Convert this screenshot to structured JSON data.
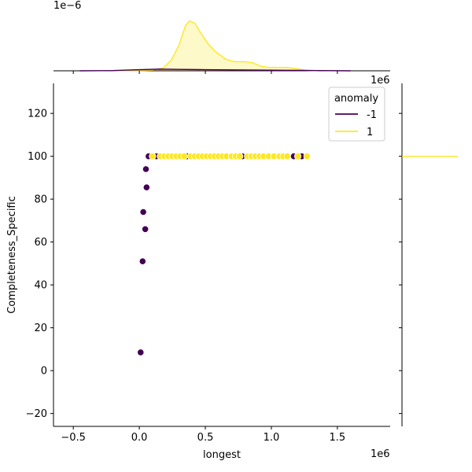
{
  "chart_data": {
    "type": "scatter",
    "subtype": "jointplot",
    "xlabel": "longest",
    "ylabel": "Completeness_Specific",
    "x_offset_label": "1e6",
    "top_marginal_offset_label": "1e−6",
    "right_marginal_offset_label": "1e6",
    "xlim": [
      -0.65,
      1.9
    ],
    "ylim": [
      -26,
      134
    ],
    "x_ticks": [
      -0.5,
      0.0,
      0.5,
      1.0,
      1.5
    ],
    "x_tick_labels": [
      "−0.5",
      "0.0",
      "0.5",
      "1.0",
      "1.5"
    ],
    "y_ticks": [
      -20,
      0,
      20,
      40,
      60,
      80,
      100,
      120
    ],
    "y_tick_labels": [
      "−20",
      "0",
      "20",
      "40",
      "60",
      "80",
      "100",
      "120"
    ],
    "grid": false,
    "legend": {
      "title": "anomaly",
      "placement": "top-right",
      "entries": [
        {
          "label": "-1",
          "color": "#440154"
        },
        {
          "label": "1",
          "color": "#fde725"
        }
      ]
    },
    "series": [
      {
        "name": "-1",
        "color": "#440154",
        "x": [
          0.01,
          0.025,
          0.03,
          0.045,
          0.05,
          0.055,
          0.07,
          0.13,
          0.36,
          0.78,
          1.17,
          1.23
        ],
        "y": [
          8.5,
          51,
          74,
          66,
          94,
          85.5,
          100,
          100,
          100,
          100,
          100,
          100
        ]
      },
      {
        "name": "1",
        "color": "#fde725",
        "x": [
          0.1,
          0.16,
          0.19,
          0.22,
          0.25,
          0.28,
          0.31,
          0.34,
          0.39,
          0.42,
          0.45,
          0.48,
          0.51,
          0.54,
          0.57,
          0.6,
          0.63,
          0.66,
          0.7,
          0.73,
          0.76,
          0.82,
          0.85,
          0.88,
          0.91,
          0.94,
          0.98,
          1.02,
          1.06,
          1.09,
          1.12,
          1.2,
          1.27
        ],
        "y": [
          100,
          100,
          100,
          100,
          100,
          100,
          100,
          100,
          100,
          100,
          100,
          100,
          100,
          100,
          100,
          100,
          100,
          100,
          100,
          100,
          100,
          100,
          100,
          100,
          100,
          100,
          100,
          100,
          100,
          100,
          100,
          100,
          100
        ]
      }
    ],
    "marginal_x_density": {
      "series": [
        {
          "name": "1",
          "color": "#fde725",
          "x": [
            -0.2,
            0.0,
            0.1,
            0.18,
            0.24,
            0.3,
            0.35,
            0.38,
            0.42,
            0.47,
            0.52,
            0.58,
            0.66,
            0.72,
            0.8,
            0.86,
            0.92,
            0.98,
            1.05,
            1.12,
            1.18,
            1.26,
            1.36
          ],
          "density": [
            0.0,
            0.002,
            0.01,
            0.05,
            0.18,
            0.45,
            0.8,
            0.88,
            0.84,
            0.65,
            0.48,
            0.33,
            0.2,
            0.16,
            0.16,
            0.14,
            0.08,
            0.06,
            0.06,
            0.06,
            0.04,
            0.01,
            0.0
          ]
        },
        {
          "name": "-1",
          "color": "#440154",
          "x": [
            -0.45,
            -0.2,
            0.0,
            0.15,
            0.3,
            0.5,
            0.8,
            1.1,
            1.35,
            1.6
          ],
          "density": [
            0.0,
            0.005,
            0.02,
            0.03,
            0.025,
            0.02,
            0.015,
            0.01,
            0.005,
            0.0
          ]
        }
      ]
    },
    "marginal_y_density": {
      "series": [
        {
          "name": "1",
          "color": "#fde725",
          "y": 100,
          "note_level": "spike"
        }
      ]
    }
  }
}
